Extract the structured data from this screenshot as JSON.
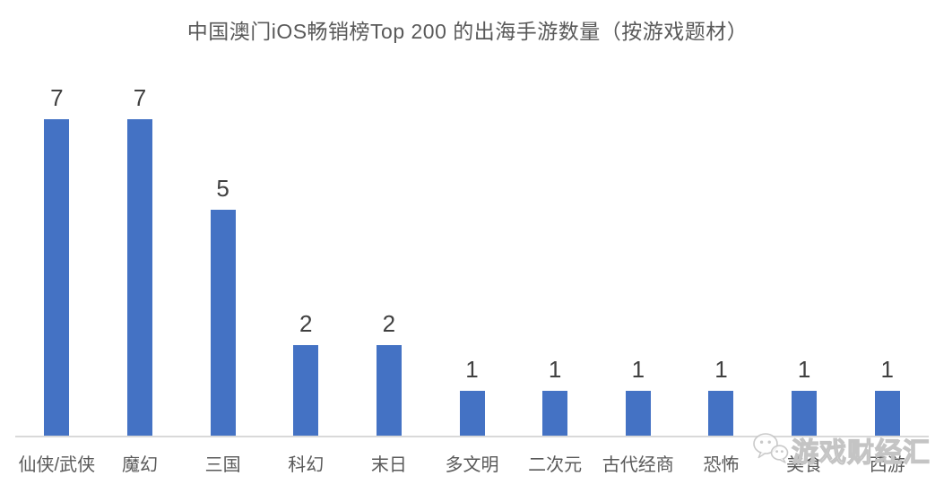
{
  "chart_data": {
    "type": "bar",
    "title": "中国澳门iOS畅销榜Top 200 的出海手游数量（按游戏题材）",
    "categories": [
      "仙侠/武侠",
      "魔幻",
      "三国",
      "科幻",
      "末日",
      "多文明",
      "二次元",
      "古代经商",
      "恐怖",
      "美食",
      "西游"
    ],
    "values": [
      7,
      7,
      5,
      2,
      2,
      1,
      1,
      1,
      1,
      1,
      1
    ],
    "xlabel": "",
    "ylabel": "",
    "ylim": [
      0,
      7.7
    ],
    "grid": false,
    "legend": false,
    "data_labels": true,
    "bar_color": "#4472C4"
  },
  "watermark": {
    "text": "游戏财经汇",
    "icon": "wechat-icon"
  },
  "colors": {
    "bar": "#4472C4",
    "title_text": "#595959",
    "value_label_text": "#404040",
    "category_label_text": "#595959",
    "axis_line": "#D9D9D9",
    "watermark": "#C9C9C9"
  }
}
